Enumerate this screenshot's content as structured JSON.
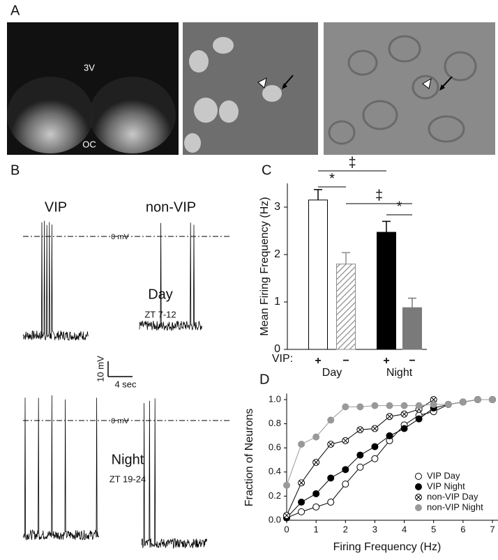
{
  "panel_a": {
    "label": "A",
    "label_top": "3V",
    "label_bottom": "OC"
  },
  "panel_b": {
    "label": "B",
    "col_left": "VIP",
    "col_right": "non-VIP",
    "zero": "0 mV",
    "day": "Day",
    "day_zt": "ZT 7-12",
    "night": "Night",
    "night_zt": "ZT 19-24",
    "scale_v": "10 mV",
    "scale_t": "4 sec"
  },
  "chart_data": [
    {
      "type": "bar",
      "panel_label": "C",
      "ylabel": "Mean Firing Frequency (Hz)",
      "categories": [
        "+",
        "−",
        "+",
        "−"
      ],
      "x_prefix": "VIP:",
      "groups": [
        "Day",
        "Night"
      ],
      "values": [
        3.15,
        1.8,
        2.47,
        0.88
      ],
      "errors": [
        0.22,
        0.24,
        0.23,
        0.2
      ],
      "colors": [
        "#ffffff",
        "#8c8c8c",
        "#000000",
        "#7a7a7a"
      ],
      "hatched": [
        false,
        true,
        false,
        false
      ],
      "ylim": [
        0,
        3.5
      ],
      "yticks": [
        0,
        1,
        2,
        3
      ],
      "annotations": [
        {
          "text": "‡",
          "from": 0,
          "to": 2
        },
        {
          "text": "*",
          "from": 0,
          "to": 1
        },
        {
          "text": "‡",
          "from": 1,
          "to": 3
        },
        {
          "text": "*",
          "from": 2,
          "to": 3
        }
      ]
    },
    {
      "type": "line",
      "panel_label": "D",
      "xlabel": "Firing Frequency (Hz)",
      "ylabel": "Fraction of Neurons",
      "x": [
        0,
        0.5,
        1,
        1.5,
        2,
        2.5,
        3,
        3.5,
        4,
        4.5,
        5,
        5.5,
        6,
        6.5,
        7
      ],
      "xlim": [
        0,
        7.3
      ],
      "xticks": [
        0,
        1,
        2,
        3,
        4,
        5,
        6,
        7
      ],
      "ylim": [
        0,
        1.05
      ],
      "yticks": [
        {
          "value": 0,
          "label": "0.0"
        },
        0.2,
        0.4,
        0.6,
        0.8,
        {
          "value": 1,
          "label": "1.0"
        }
      ],
      "legend": "lower right",
      "series": [
        {
          "name": "VIP Day",
          "color": "#000000",
          "marker": "open",
          "values": [
            0.02,
            0.07,
            0.11,
            0.15,
            0.3,
            0.44,
            0.51,
            0.66,
            0.79,
            0.87,
            0.9,
            0.96,
            0.98,
            1.0,
            1.0
          ]
        },
        {
          "name": "VIP Night",
          "color": "#000000",
          "marker": "filled",
          "values": [
            0.02,
            0.15,
            0.22,
            0.35,
            0.42,
            0.54,
            0.61,
            0.7,
            0.76,
            0.84,
            0.93,
            0.96,
            0.98,
            1.0,
            1.0
          ]
        },
        {
          "name": "non-VIP Day",
          "color": "#000000",
          "marker": "cross",
          "values": [
            0.04,
            0.31,
            0.48,
            0.63,
            0.66,
            0.75,
            0.76,
            0.86,
            0.88,
            0.92,
            1.0,
            null,
            null,
            null,
            null
          ]
        },
        {
          "name": "non-VIP Night",
          "color": "#999999",
          "marker": "filled",
          "values": [
            0.29,
            0.63,
            0.69,
            0.83,
            0.94,
            0.94,
            0.95,
            0.95,
            0.95,
            0.95,
            0.96,
            0.96,
            0.98,
            1.0,
            1.0
          ]
        }
      ]
    }
  ]
}
